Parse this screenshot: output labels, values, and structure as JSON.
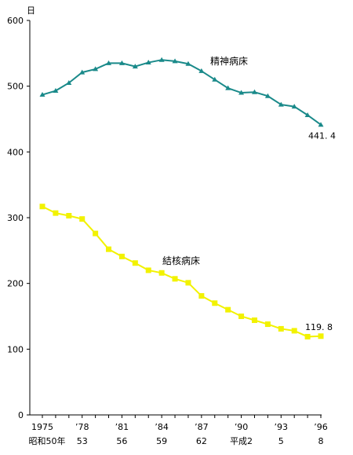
{
  "chart_data": {
    "type": "line",
    "y_unit_label": "日",
    "ylim": [
      0,
      600
    ],
    "y_ticks": [
      "0",
      "100",
      "200",
      "300",
      "400",
      "500",
      "600"
    ],
    "x_tick_labels_top": [
      "1975",
      "’78",
      "’81",
      "’84",
      "’87",
      "’90",
      "’93",
      "’96"
    ],
    "x_tick_labels_bottom": [
      "昭和50年",
      "53",
      "56",
      "59",
      "62",
      "平成2",
      "5",
      "8"
    ],
    "x": [
      1975,
      1976,
      1977,
      1978,
      1979,
      1980,
      1981,
      1982,
      1983,
      1984,
      1985,
      1986,
      1987,
      1988,
      1989,
      1990,
      1991,
      1992,
      1993,
      1994,
      1995,
      1996
    ],
    "series": [
      {
        "name": "精神病床",
        "color": "#1a8a8a",
        "marker": "triangle",
        "values": [
          487,
          493,
          505,
          521,
          526,
          535,
          535,
          530,
          536,
          540,
          538,
          534,
          523,
          510,
          497,
          490,
          491,
          485,
          472,
          469,
          456,
          441.4
        ],
        "end_label": "441. 4"
      },
      {
        "name": "結核病床",
        "color": "#f2f200",
        "marker": "square",
        "values": [
          317,
          307,
          303,
          298,
          276,
          252,
          241,
          231,
          220,
          216,
          207,
          201,
          181,
          170,
          160,
          150,
          144,
          138,
          131,
          128,
          119,
          119.8
        ],
        "end_label": "119. 8"
      }
    ]
  }
}
